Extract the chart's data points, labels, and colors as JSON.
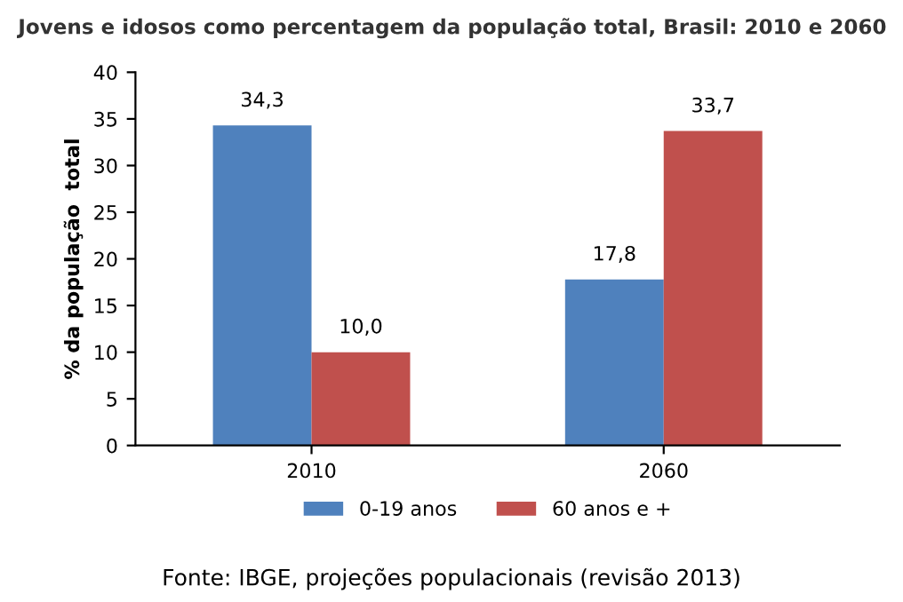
{
  "chart_data": {
    "type": "bar",
    "title": "Jovens e idosos como percentagem da população total, Brasil: 2010 e 2060",
    "ylabel": "% da população  total",
    "categories": [
      "2010",
      "2060"
    ],
    "series": [
      {
        "name": "0-19 anos",
        "color": "#4f81bd",
        "values": [
          34.3,
          17.8
        ],
        "value_labels": [
          "34,3",
          "17,8"
        ]
      },
      {
        "name": "60 anos e +",
        "color": "#c0504d",
        "values": [
          10.0,
          33.7
        ],
        "value_labels": [
          "10,0",
          "33,7"
        ]
      }
    ],
    "ylim": [
      0,
      40
    ],
    "yticks": [
      0,
      5,
      10,
      15,
      20,
      25,
      30,
      35,
      40
    ],
    "grid": false,
    "legend": "bottom",
    "annotations": [
      "Fonte: IBGE, projeções populacionais (revisão 2013)"
    ]
  }
}
